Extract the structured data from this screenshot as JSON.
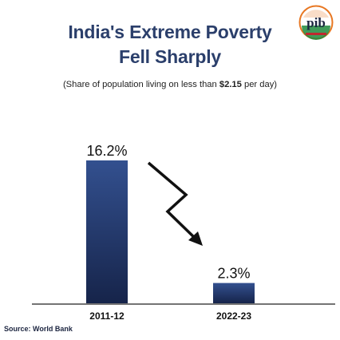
{
  "header": {
    "title_line1": "India's Extreme Poverty",
    "title_line2": "Fell Sharply",
    "subtitle_prefix": "(Share of population living on less than ",
    "subtitle_bold": "$2.15",
    "subtitle_suffix": " per day)"
  },
  "logo": {
    "text": "pib",
    "icon": "pib-logo-icon"
  },
  "source": "Source: World Bank",
  "colors": {
    "title": "#2b3f6b",
    "bar_top": "#33508f",
    "bar_bottom": "#16244a",
    "logo_orange": "#e87722",
    "logo_green": "#1e8a3c",
    "logo_red": "#c0282e"
  },
  "chart_data": {
    "type": "bar",
    "categories": [
      "2011-12",
      "2022-23"
    ],
    "values": [
      16.2,
      2.3
    ],
    "data_labels": [
      "16.2%",
      "2.3%"
    ],
    "unit": "%",
    "ylim": [
      0,
      20
    ],
    "grid": false,
    "legend": "none",
    "trend_arrow": "down"
  }
}
